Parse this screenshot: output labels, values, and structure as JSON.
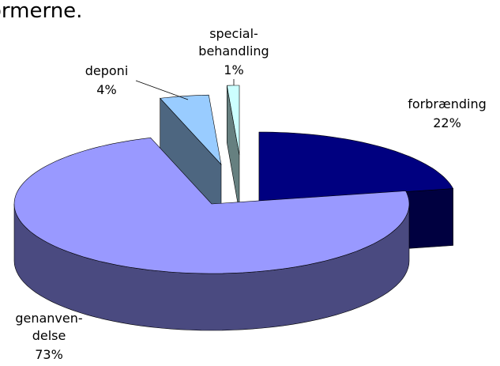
{
  "chart_data": {
    "type": "pie3d",
    "title": "ormerne.",
    "categories": [
      [
        "forbrænding"
      ],
      [
        "genanven-",
        "delse"
      ],
      [
        "deponi"
      ],
      [
        "special-",
        "behandling"
      ]
    ],
    "values": [
      22,
      73,
      4,
      1
    ],
    "value_labels": [
      "22%",
      "73%",
      "4%",
      "1%"
    ],
    "colors": [
      "#000080",
      "#9999ff",
      "#99ccff",
      "#ccffff"
    ],
    "side_colors": [
      "#000040",
      "#4a4a80",
      "#4d6680",
      "#668080"
    ]
  }
}
